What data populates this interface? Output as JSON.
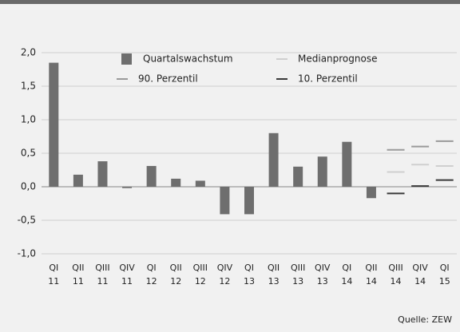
{
  "chart_data": {
    "type": "bar",
    "categories": [
      [
        "QI",
        "11"
      ],
      [
        "QII",
        "11"
      ],
      [
        "QIII",
        "11"
      ],
      [
        "QIV",
        "11"
      ],
      [
        "QI",
        "12"
      ],
      [
        "QII",
        "12"
      ],
      [
        "QIII",
        "12"
      ],
      [
        "QIV",
        "12"
      ],
      [
        "QI",
        "13"
      ],
      [
        "QII",
        "13"
      ],
      [
        "QIII",
        "13"
      ],
      [
        "QIV",
        "13"
      ],
      [
        "QI",
        "14"
      ],
      [
        "QII",
        "14"
      ],
      [
        "QIII",
        "14"
      ],
      [
        "QIV",
        "14"
      ],
      [
        "QI",
        "15"
      ]
    ],
    "series": [
      {
        "name": "Quartalswachstum",
        "style": "bar",
        "color": "#6e6e6e",
        "values": [
          1.85,
          0.18,
          0.38,
          -0.02,
          0.31,
          0.12,
          0.09,
          -0.41,
          -0.41,
          0.8,
          0.3,
          0.45,
          0.67,
          -0.17,
          null,
          null,
          null
        ]
      },
      {
        "name": "Medianprognose",
        "style": "dash",
        "color": "#cfcfcf",
        "values": [
          null,
          null,
          null,
          null,
          null,
          null,
          null,
          null,
          null,
          null,
          null,
          null,
          null,
          null,
          0.22,
          0.33,
          0.31
        ]
      },
      {
        "name": "90. Perzentil",
        "style": "dash",
        "color": "#9a9a9a",
        "values": [
          null,
          null,
          null,
          null,
          null,
          null,
          null,
          null,
          null,
          null,
          null,
          null,
          null,
          null,
          0.55,
          0.6,
          0.68
        ]
      },
      {
        "name": "10. Perzentil",
        "style": "dash",
        "color": "#3a3a3a",
        "values": [
          null,
          null,
          null,
          null,
          null,
          null,
          null,
          null,
          null,
          null,
          null,
          null,
          null,
          null,
          -0.1,
          0.01,
          0.1
        ]
      }
    ],
    "ylim": [
      -1.0,
      2.0
    ],
    "yticks": [
      {
        "value": 2.0,
        "label": "2,0"
      },
      {
        "value": 1.5,
        "label": "1,5"
      },
      {
        "value": 1.0,
        "label": "1,0"
      },
      {
        "value": 0.5,
        "label": "0,5"
      },
      {
        "value": 0.0,
        "label": "0,0"
      },
      {
        "value": -0.5,
        "label": "-0,5"
      },
      {
        "value": -1.0,
        "label": "-1,0"
      }
    ],
    "grid": true,
    "source": "Quelle: ZEW"
  }
}
